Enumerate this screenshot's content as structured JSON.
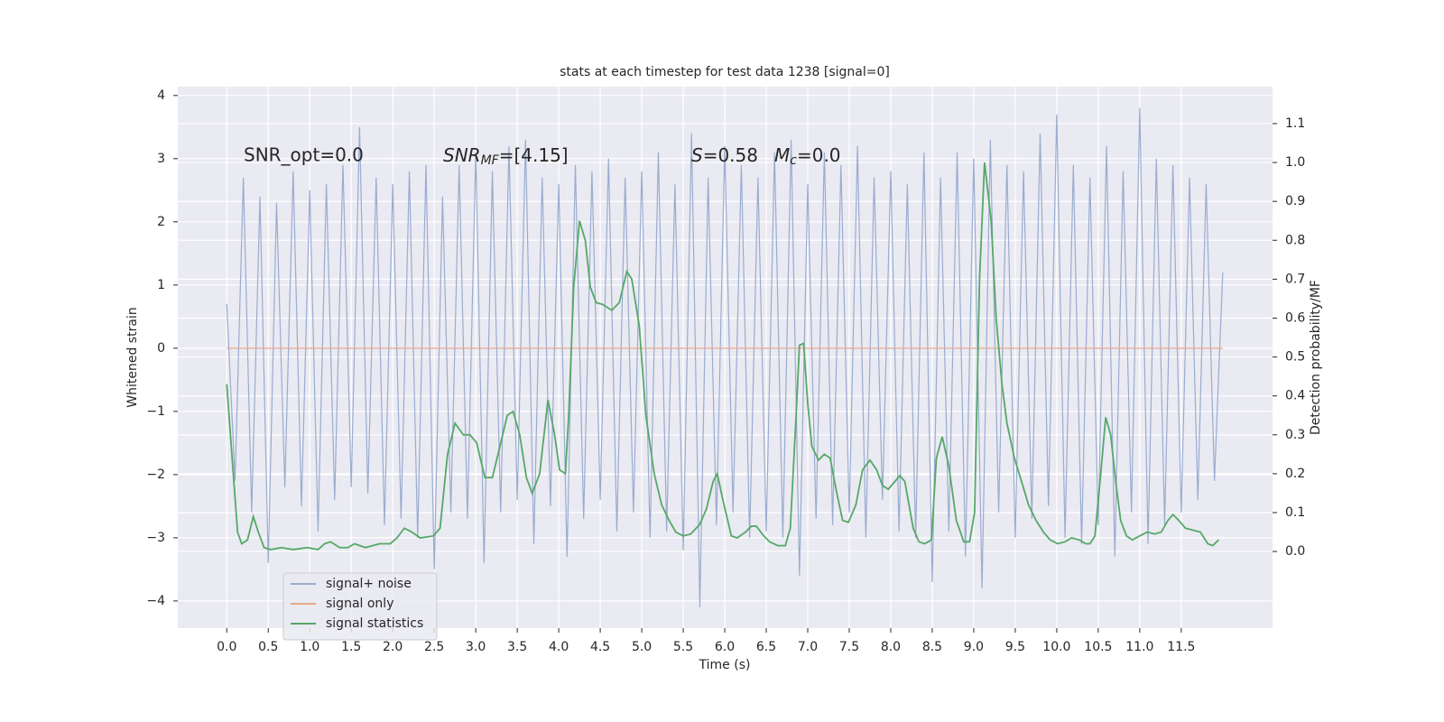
{
  "chart_data": {
    "type": "line",
    "title": "stats at each timestep for test data 1238 [signal=0]",
    "xlabel": "Time (s)",
    "ylabel": "Whitened strain",
    "y2label": "Detection probability/MF",
    "annotations": [
      "SNR_opt=0.0",
      {
        "base": "SNR",
        "sub": "MF",
        "tail": "=[4.15]"
      },
      {
        "base": "S",
        "tail": "=0.58"
      },
      {
        "base": "M",
        "sub": "c",
        "tail": "=0.0"
      }
    ],
    "xlim": [
      -0.59,
      12.6
    ],
    "ylim": [
      -4.43,
      4.14
    ],
    "y2lim": [
      -0.197,
      1.195
    ],
    "xticks": [
      {
        "value": 0,
        "label": "0.0"
      },
      0.5,
      {
        "value": 1,
        "label": "1.0"
      },
      1.5,
      {
        "value": 2,
        "label": "2.0"
      },
      2.5,
      {
        "value": 3,
        "label": "3.0"
      },
      3.5,
      {
        "value": 4,
        "label": "4.0"
      },
      4.5,
      {
        "value": 5,
        "label": "5.0"
      },
      5.5,
      {
        "value": 6,
        "label": "6.0"
      },
      6.5,
      {
        "value": 7,
        "label": "7.0"
      },
      7.5,
      {
        "value": 8,
        "label": "8.0"
      },
      8.5,
      {
        "value": 9,
        "label": "9.0"
      },
      9.5,
      {
        "value": 10,
        "label": "10.0"
      },
      10.5,
      {
        "value": 11,
        "label": "11.0"
      },
      11.5
    ],
    "yticks": [
      {
        "value": -4,
        "label": "−4"
      },
      {
        "value": -3,
        "label": "−3"
      },
      {
        "value": -2,
        "label": "−2"
      },
      {
        "value": -1,
        "label": "−1"
      },
      0,
      1,
      2,
      3,
      4
    ],
    "y2ticks": [
      {
        "value": 0,
        "label": "0.0"
      },
      0.1,
      0.2,
      0.3,
      0.4,
      0.5,
      0.6,
      0.7,
      0.8,
      0.9,
      {
        "value": 1,
        "label": "1.0"
      },
      1.1
    ],
    "grid": true,
    "legend": "lower left",
    "series": [
      {
        "name": "signal+ noise",
        "color": "#9aaccf",
        "x": [
          0,
          0.1,
          0.2,
          0.3,
          0.4,
          0.5,
          0.6,
          0.7,
          0.8,
          0.9,
          1,
          1.1,
          1.2,
          1.3,
          1.4,
          1.5,
          1.6,
          1.7,
          1.8,
          1.9,
          2,
          2.1,
          2.2,
          2.3,
          2.4,
          2.5,
          2.6,
          2.7,
          2.8,
          2.9,
          3,
          3.1,
          3.2,
          3.3,
          3.4,
          3.5,
          3.6,
          3.7,
          3.8,
          3.9,
          4,
          4.1,
          4.2,
          4.3,
          4.4,
          4.5,
          4.6,
          4.7,
          4.8,
          4.9,
          5,
          5.1,
          5.2,
          5.3,
          5.4,
          5.5,
          5.6,
          5.7,
          5.8,
          5.9,
          6,
          6.1,
          6.2,
          6.3,
          6.4,
          6.5,
          6.6,
          6.7,
          6.8,
          6.9,
          7,
          7.1,
          7.2,
          7.3,
          7.4,
          7.5,
          7.6,
          7.7,
          7.8,
          7.9,
          8,
          8.1,
          8.2,
          8.3,
          8.4,
          8.5,
          8.6,
          8.7,
          8.8,
          8.9,
          9,
          9.1,
          9.2,
          9.3,
          9.4,
          9.5,
          9.6,
          9.7,
          9.8,
          9.9,
          10,
          10.1,
          10.2,
          10.3,
          10.4,
          10.5,
          10.6,
          10.7,
          10.8,
          10.9,
          11,
          11.1,
          11.2,
          11.3,
          11.4,
          11.5,
          11.6,
          11.7,
          11.8,
          11.9,
          12
        ],
        "values": [
          0.7,
          -2.1,
          2.7,
          -2.6,
          2.4,
          -3.4,
          2.3,
          -2.2,
          2.8,
          -2.5,
          2.5,
          -2.9,
          2.6,
          -2.4,
          2.9,
          -2.2,
          3.5,
          -2.3,
          2.7,
          -2.8,
          2.6,
          -2.7,
          2.8,
          -3.0,
          2.9,
          -3.5,
          2.4,
          -2.6,
          2.9,
          -2.7,
          3.1,
          -3.4,
          2.8,
          -2.6,
          3.2,
          -2.4,
          3.3,
          -3.1,
          2.7,
          -2.5,
          2.6,
          -3.3,
          2.9,
          -2.7,
          2.8,
          -2.4,
          3.0,
          -2.9,
          2.7,
          -2.6,
          2.8,
          -3.0,
          3.1,
          -2.9,
          2.6,
          -3.2,
          3.4,
          -4.1,
          2.7,
          -2.8,
          3.2,
          -2.6,
          2.9,
          -3.0,
          2.7,
          -2.9,
          3.1,
          -3.0,
          3.3,
          -3.6,
          2.6,
          -2.7,
          3.1,
          -2.8,
          2.9,
          -2.6,
          3.2,
          -3.0,
          2.7,
          -2.4,
          2.8,
          -2.9,
          2.6,
          -3.0,
          3.1,
          -3.7,
          2.7,
          -2.9,
          3.1,
          -3.3,
          3.0,
          -3.8,
          3.3,
          -2.6,
          2.9,
          -3.0,
          2.8,
          -2.7,
          3.4,
          -2.5,
          3.7,
          -3.0,
          2.9,
          -3.1,
          2.7,
          -2.8,
          3.2,
          -3.3,
          2.8,
          -2.6,
          3.8,
          -3.1,
          3.0,
          -2.8,
          2.9,
          -2.6,
          2.7,
          -2.4,
          2.6,
          -2.1,
          1.2
        ]
      },
      {
        "name": "signal only",
        "color": "#e8a98a",
        "x": [
          0,
          12
        ],
        "values": [
          0,
          0
        ]
      },
      {
        "name": "signal statistics",
        "color": "#55a868",
        "axis": "y2",
        "x": [
          0,
          0.13,
          0.18,
          0.25,
          0.32,
          0.38,
          0.45,
          0.53,
          0.66,
          0.8,
          0.97,
          1.1,
          1.18,
          1.25,
          1.36,
          1.46,
          1.54,
          1.67,
          1.84,
          1.97,
          2.05,
          2.14,
          2.23,
          2.33,
          2.49,
          2.57,
          2.66,
          2.75,
          2.85,
          2.93,
          3.01,
          3.11,
          3.2,
          3.28,
          3.38,
          3.45,
          3.53,
          3.61,
          3.68,
          3.77,
          3.87,
          3.95,
          4.01,
          4.08,
          4.12,
          4.18,
          4.25,
          4.32,
          4.38,
          4.45,
          4.53,
          4.64,
          4.73,
          4.82,
          4.88,
          4.97,
          5.05,
          5.15,
          5.24,
          5.33,
          5.41,
          5.5,
          5.59,
          5.7,
          5.78,
          5.86,
          5.91,
          5.98,
          6.08,
          6.15,
          6.25,
          6.32,
          6.38,
          6.47,
          6.54,
          6.64,
          6.73,
          6.79,
          6.86,
          6.9,
          6.95,
          7.0,
          7.05,
          7.13,
          7.2,
          7.27,
          7.35,
          7.42,
          7.49,
          7.58,
          7.66,
          7.75,
          7.83,
          7.9,
          7.97,
          8.05,
          8.11,
          8.17,
          8.27,
          8.34,
          8.41,
          8.49,
          8.55,
          8.62,
          8.7,
          8.79,
          8.88,
          8.95,
          9.01,
          9.07,
          9.13,
          9.21,
          9.27,
          9.34,
          9.4,
          9.49,
          9.59,
          9.66,
          9.75,
          9.84,
          9.92,
          10.01,
          10.1,
          10.18,
          10.27,
          10.35,
          10.4,
          10.46,
          10.53,
          10.59,
          10.65,
          10.71,
          10.77,
          10.84,
          10.91,
          11.0,
          11.09,
          11.18,
          11.26,
          11.34,
          11.4,
          11.47,
          11.55,
          11.64,
          11.73,
          11.82,
          11.88,
          11.95
        ],
        "values": [
          0.43,
          0.05,
          0.02,
          0.03,
          0.09,
          0.05,
          0.01,
          0.005,
          0.01,
          0.005,
          0.01,
          0.005,
          0.02,
          0.025,
          0.01,
          0.01,
          0.02,
          0.01,
          0.02,
          0.02,
          0.035,
          0.06,
          0.05,
          0.035,
          0.04,
          0.06,
          0.25,
          0.33,
          0.3,
          0.3,
          0.28,
          0.19,
          0.19,
          0.26,
          0.35,
          0.36,
          0.3,
          0.19,
          0.15,
          0.2,
          0.39,
          0.3,
          0.21,
          0.2,
          0.35,
          0.68,
          0.85,
          0.8,
          0.68,
          0.64,
          0.635,
          0.62,
          0.64,
          0.72,
          0.7,
          0.58,
          0.35,
          0.2,
          0.12,
          0.08,
          0.05,
          0.04,
          0.045,
          0.07,
          0.11,
          0.18,
          0.2,
          0.13,
          0.04,
          0.035,
          0.05,
          0.065,
          0.065,
          0.04,
          0.025,
          0.015,
          0.015,
          0.06,
          0.35,
          0.53,
          0.535,
          0.38,
          0.27,
          0.235,
          0.25,
          0.24,
          0.15,
          0.08,
          0.075,
          0.12,
          0.21,
          0.235,
          0.21,
          0.17,
          0.16,
          0.18,
          0.195,
          0.18,
          0.06,
          0.025,
          0.02,
          0.03,
          0.24,
          0.295,
          0.22,
          0.08,
          0.025,
          0.025,
          0.1,
          0.7,
          1.0,
          0.85,
          0.6,
          0.43,
          0.33,
          0.24,
          0.17,
          0.12,
          0.08,
          0.05,
          0.03,
          0.02,
          0.025,
          0.035,
          0.03,
          0.02,
          0.02,
          0.04,
          0.2,
          0.345,
          0.3,
          0.18,
          0.08,
          0.04,
          0.03,
          0.04,
          0.05,
          0.045,
          0.05,
          0.08,
          0.095,
          0.08,
          0.06,
          0.055,
          0.05,
          0.02,
          0.015,
          0.03
        ]
      }
    ]
  }
}
